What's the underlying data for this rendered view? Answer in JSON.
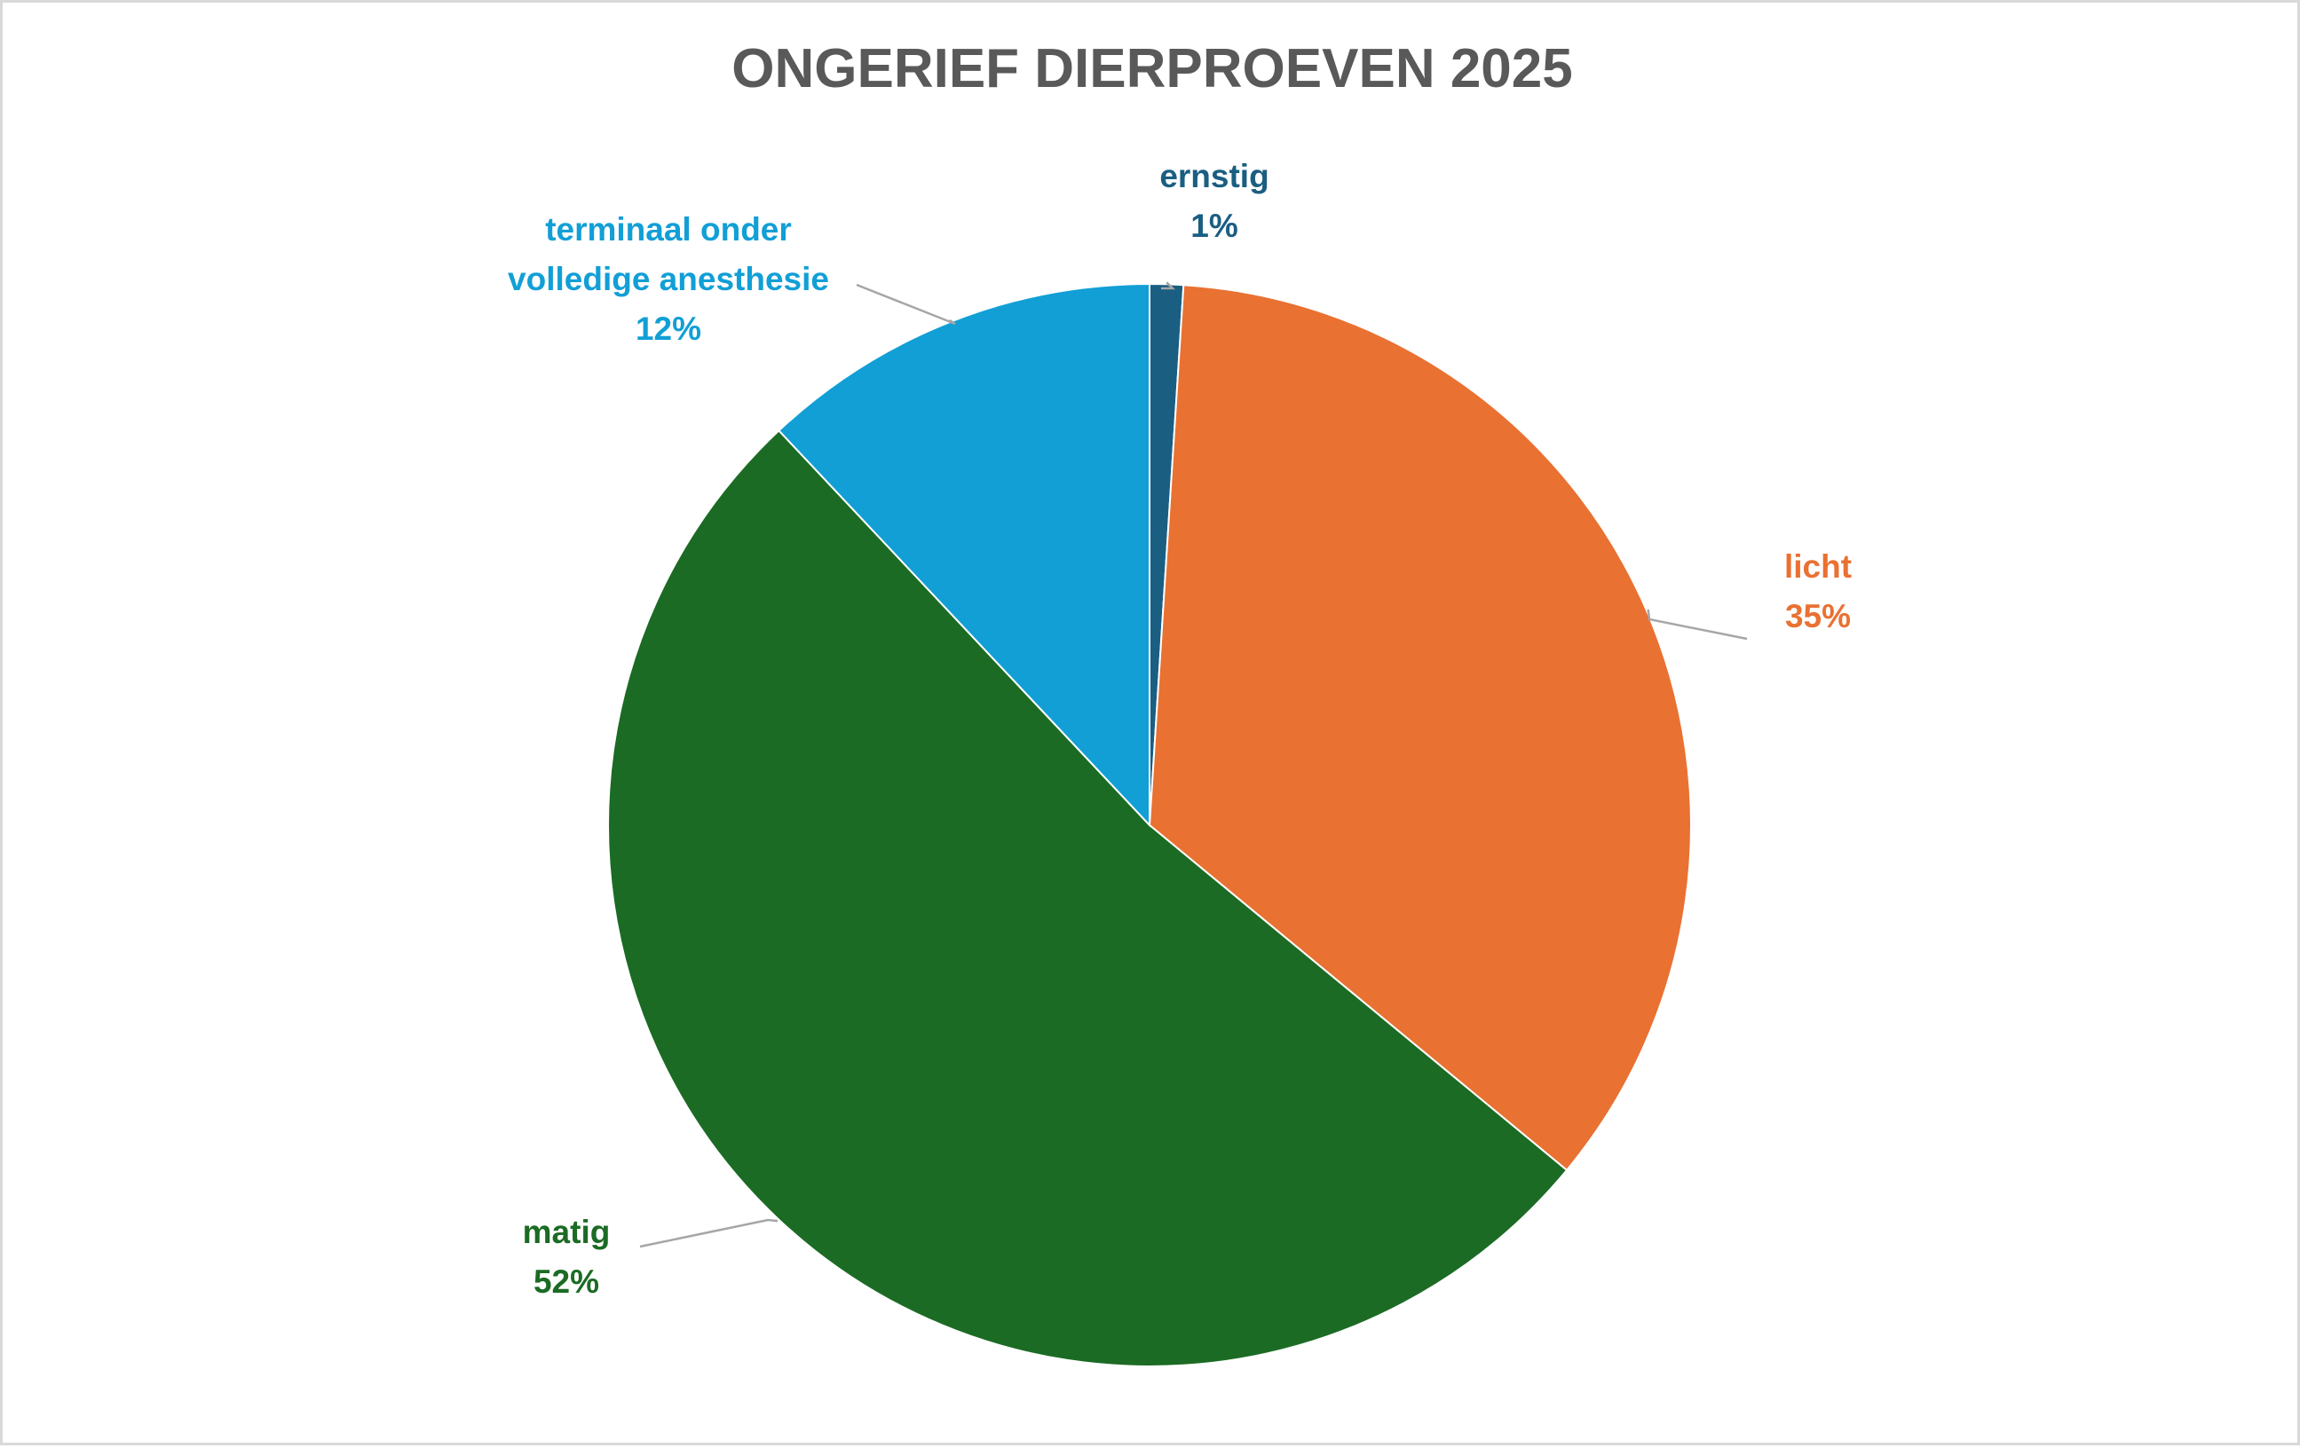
{
  "chart_data": {
    "type": "pie",
    "title": "ONGERIEF DIERPROEVEN 2025",
    "start_category": "ernstig",
    "direction": "clockwise",
    "slices": [
      {
        "name": "ernstig",
        "label_lines": [
          "ernstig"
        ],
        "value": 1,
        "display": "1%",
        "color": "#1a5e82"
      },
      {
        "name": "licht",
        "label_lines": [
          "licht"
        ],
        "value": 35,
        "display": "35%",
        "color": "#e97132"
      },
      {
        "name": "matig",
        "label_lines": [
          "matig"
        ],
        "value": 52,
        "display": "52%",
        "color": "#1b6b24"
      },
      {
        "name": "terminaal onder volledige anesthesie",
        "label_lines": [
          "terminaal onder",
          "volledige anesthesie"
        ],
        "value": 12,
        "display": "12%",
        "color": "#119fd6"
      }
    ],
    "legend": "none",
    "data_labels": "outside-with-leader-lines"
  },
  "colors": {
    "title": "#595959",
    "leader_line": "#a6a6a6",
    "border": "#d9d9d9",
    "background": "#ffffff"
  }
}
